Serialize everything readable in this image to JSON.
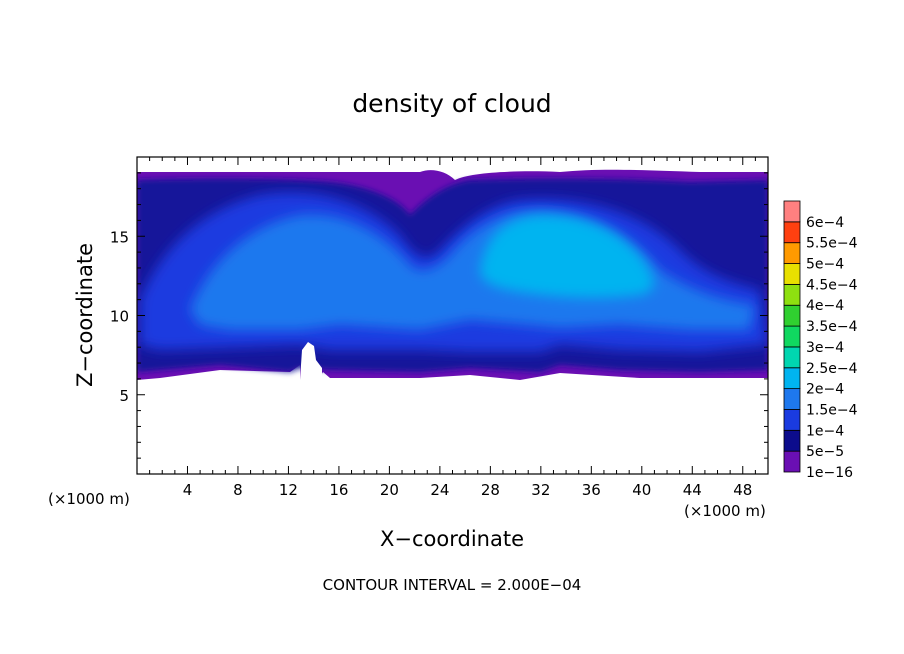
{
  "chart_data": {
    "type": "heatmap",
    "title": "density of cloud",
    "xlabel": "X−coordinate",
    "ylabel": "Z−coordinate",
    "x_unit_left": "(×1000 m)",
    "x_unit_right": "(×1000 m)",
    "xlim": [
      0,
      50
    ],
    "ylim": [
      0,
      20
    ],
    "x_ticks": [
      4,
      8,
      12,
      16,
      20,
      24,
      28,
      32,
      36,
      40,
      44,
      48
    ],
    "x_tick_labels": [
      "4",
      "8",
      "12",
      "16",
      "20",
      "24",
      "28",
      "32",
      "36",
      "40",
      "44",
      "48"
    ],
    "y_ticks": [
      5,
      10,
      15
    ],
    "y_tick_labels": [
      "5",
      "10",
      "15"
    ],
    "cloud_layer": {
      "z_base": 6,
      "z_top": 19
    },
    "colorbar": {
      "levels": [
        "1e−16",
        "5e−5",
        "1e−4",
        "1.5e−4",
        "2e−4",
        "2.5e−4",
        "3e−4",
        "3.5e−4",
        "4e−4",
        "4.5e−4",
        "5e−4",
        "5.5e−4",
        "6e−4"
      ],
      "colors": [
        "#6a0fb3",
        "#0c0c8c",
        "#1a3be0",
        "#1e78ee",
        "#00b4f0",
        "#00d6b0",
        "#10d860",
        "#30d030",
        "#8ee010",
        "#e8e000",
        "#ff9a00",
        "#ff4010",
        "#ff8080"
      ]
    },
    "contour_interval_text": "CONTOUR INTERVAL = 2.000E−04"
  }
}
